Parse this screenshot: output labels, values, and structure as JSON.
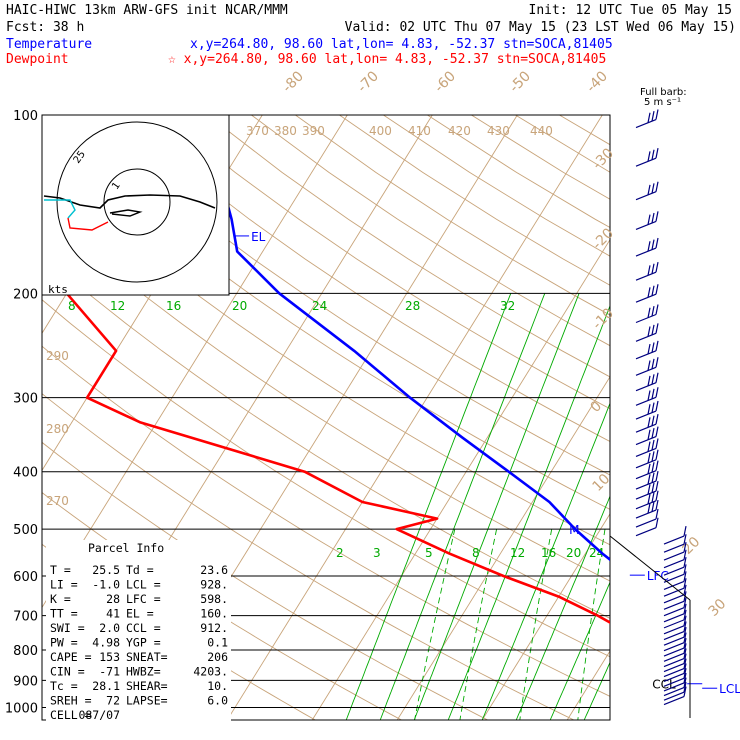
{
  "header": {
    "line1_left": "HAIC-HIWC 13km ARW-GFS init   NCAR/MMM",
    "line1_right": "Init: 12 UTC Tue 05 May 15",
    "line2_left": "Fcst:   38 h",
    "line2_right": "Valid: 02 UTC Thu 07 May 15 (23 LST Wed 06 May 15)",
    "temp_label": "Temperature",
    "temp_info": "x,y=264.80, 98.60   lat,lon=  4.83, -52.37   stn=SOCA,81405",
    "dew_label": "Dewpoint",
    "dew_info": "☆ x,y=264.80, 98.60   lat,lon=  4.83, -52.37   stn=SOCA,81405",
    "full_barb": "Full barb:",
    "barb_units": "5 m s⁻¹"
  },
  "colors": {
    "temperature": "#0000ff",
    "dewpoint": "#ff0000",
    "isotherm": "#c8a47a",
    "dry_adiabat": "#c8a47a",
    "moist_adiabat": "#00aa00",
    "mixing_ratio": "#00aa00",
    "wind": "#000080"
  },
  "hodograph": {
    "kts_label": "kts",
    "ring_labels": [
      "25",
      "1"
    ]
  },
  "parcel_info": {
    "title": "Parcel Info",
    "rows": [
      [
        "T  =",
        "25.5",
        "Td =",
        "23.6"
      ],
      [
        "LI =",
        "-1.0",
        "LCL =",
        "928."
      ],
      [
        "K  =",
        "28",
        "LFC =",
        "598."
      ],
      [
        "TT =",
        "41",
        "EL =",
        "160."
      ],
      [
        "SWI =",
        "2.0",
        "CCL =",
        "912."
      ],
      [
        "PW =",
        "4.98",
        "YGP =",
        "0.1"
      ],
      [
        "CAPE =",
        "153",
        "SNEAT=",
        "206"
      ],
      [
        "CIN =",
        "-71",
        "HWBZ=",
        "4203."
      ],
      [
        "Tc =",
        "28.1",
        "SHEAR=",
        "10."
      ],
      [
        "SREH =",
        "72",
        "LAPSE=",
        "6.0"
      ],
      [
        "CELL =",
        "087/07",
        "",
        ""
      ]
    ]
  },
  "chart_data": {
    "type": "skew-t",
    "y_axis": {
      "label": "",
      "scale": "log",
      "pressure_levels": [
        100,
        200,
        300,
        400,
        500,
        600,
        700,
        800,
        900,
        1000
      ]
    },
    "isotherm_labels": [
      "-80",
      "-70",
      "-60",
      "-50",
      "-40",
      "-30",
      "-20",
      "-10",
      "0",
      "10",
      "20",
      "30",
      "40"
    ],
    "theta_labels": [
      "370",
      "380",
      "390",
      "400",
      "410",
      "420",
      "430",
      "440",
      "290",
      "280",
      "270"
    ],
    "mixing_ratio_upper": [
      "8",
      "12",
      "16",
      "20",
      "24",
      "28",
      "32"
    ],
    "mixing_ratio_lower": [
      "2",
      "3",
      "5",
      "8",
      "12",
      "16",
      "20",
      "24"
    ],
    "series": [
      {
        "name": "Temperature",
        "points": [
          [
            100,
            -78
          ],
          [
            120,
            -72
          ],
          [
            150,
            -66
          ],
          [
            170,
            -63
          ],
          [
            200,
            -55
          ],
          [
            250,
            -42
          ],
          [
            300,
            -32
          ],
          [
            350,
            -23
          ],
          [
            400,
            -15
          ],
          [
            450,
            -8
          ],
          [
            500,
            -3
          ],
          [
            550,
            2
          ],
          [
            600,
            7
          ],
          [
            650,
            12
          ],
          [
            700,
            15
          ],
          [
            750,
            18
          ],
          [
            800,
            20
          ],
          [
            850,
            22
          ],
          [
            900,
            23
          ],
          [
            950,
            24
          ],
          [
            1000,
            26
          ]
        ]
      },
      {
        "name": "Dewpoint",
        "points": [
          [
            100,
            -82
          ],
          [
            120,
            -80
          ],
          [
            150,
            -79
          ],
          [
            180,
            -79
          ],
          [
            200,
            -80
          ],
          [
            250,
            -70
          ],
          [
            300,
            -70
          ],
          [
            330,
            -62
          ],
          [
            400,
            -39
          ],
          [
            450,
            -30
          ],
          [
            480,
            -20
          ],
          [
            500,
            -24
          ],
          [
            550,
            -16
          ],
          [
            600,
            -8
          ],
          [
            650,
            0
          ],
          [
            700,
            6
          ],
          [
            750,
            11
          ],
          [
            800,
            15
          ],
          [
            850,
            18
          ],
          [
            900,
            20
          ],
          [
            950,
            22
          ],
          [
            1000,
            23.6
          ]
        ]
      }
    ],
    "annotations": [
      {
        "text": "EL",
        "p": 160
      },
      {
        "text": "LFC",
        "p": 598
      },
      {
        "text": "CCL",
        "p": 912
      },
      {
        "text": "LCL",
        "p": 928
      },
      {
        "text": "M",
        "p": 500
      }
    ]
  }
}
